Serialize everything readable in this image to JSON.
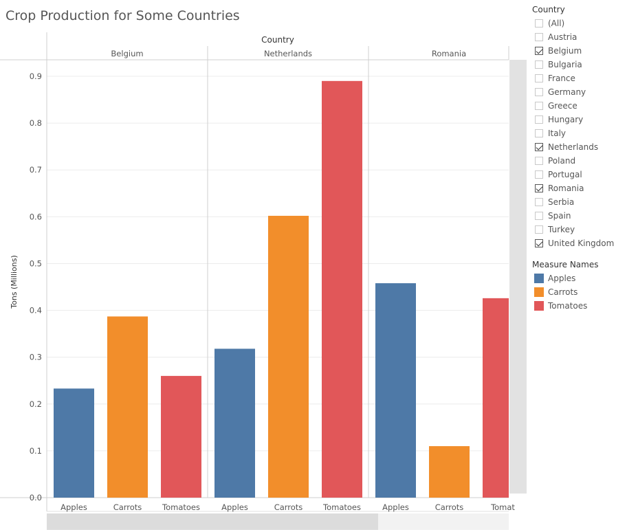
{
  "title": "Crop Production for Some Countries",
  "chart_data": {
    "type": "bar",
    "title": "Crop Production for Some Countries",
    "column_header": "Country",
    "ylabel": "Tons (Millions)",
    "ylim": [
      0,
      0.93
    ],
    "yticks": [
      0.0,
      0.1,
      0.2,
      0.3,
      0.4,
      0.5,
      0.6,
      0.7,
      0.8,
      0.9
    ],
    "grid": true,
    "legend_position": "right",
    "categories": [
      "Apples",
      "Carrots",
      "Tomatoes"
    ],
    "category_tick_labels": [
      [
        "Apples",
        "Carrots",
        "Tomatoes"
      ],
      [
        "Apples",
        "Carrots",
        "Tomatoes"
      ],
      [
        "Apples",
        "Carrots",
        "Tomat"
      ]
    ],
    "panels": [
      {
        "country": "Belgium",
        "values": [
          0.233,
          0.387,
          0.26
        ]
      },
      {
        "country": "Netherlands",
        "values": [
          0.318,
          0.602,
          0.89
        ]
      },
      {
        "country": "Romania",
        "values": [
          0.458,
          0.11,
          0.426
        ]
      }
    ],
    "colors": {
      "Apples": "#4e79a7",
      "Carrots": "#f28e2b",
      "Tomatoes": "#e15759"
    }
  },
  "filter": {
    "title": "Country",
    "items": [
      {
        "label": "(All)",
        "checked": false
      },
      {
        "label": "Austria",
        "checked": false
      },
      {
        "label": "Belgium",
        "checked": true
      },
      {
        "label": "Bulgaria",
        "checked": false
      },
      {
        "label": "France",
        "checked": false
      },
      {
        "label": "Germany",
        "checked": false
      },
      {
        "label": "Greece",
        "checked": false
      },
      {
        "label": "Hungary",
        "checked": false
      },
      {
        "label": "Italy",
        "checked": false
      },
      {
        "label": "Netherlands",
        "checked": true
      },
      {
        "label": "Poland",
        "checked": false
      },
      {
        "label": "Portugal",
        "checked": false
      },
      {
        "label": "Romania",
        "checked": true
      },
      {
        "label": "Serbia",
        "checked": false
      },
      {
        "label": "Spain",
        "checked": false
      },
      {
        "label": "Turkey",
        "checked": false
      },
      {
        "label": "United Kingdom",
        "checked": true
      }
    ]
  },
  "legend": {
    "title": "Measure Names",
    "items": [
      {
        "label": "Apples",
        "color": "#4e79a7"
      },
      {
        "label": "Carrots",
        "color": "#f28e2b"
      },
      {
        "label": "Tomatoes",
        "color": "#e15759"
      }
    ]
  }
}
